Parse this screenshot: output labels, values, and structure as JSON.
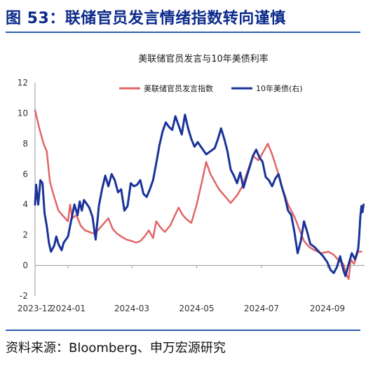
{
  "figure": {
    "title": "图 53：联储官员发言情绪指数转向谨慎",
    "source": "资料来源：Bloomberg、申万宏源研究"
  },
  "chart_data": {
    "type": "line",
    "title": "美联储官员发言与10年美债利率",
    "x_tick_labels": [
      "2023-12",
      "2024-01",
      "2024-03",
      "2024-05",
      "2024-07",
      "2024-09"
    ],
    "y_tick_labels": [
      "-2",
      "0",
      "2",
      "4",
      "6",
      "8",
      "10",
      "12"
    ],
    "ylim": [
      -2,
      12
    ],
    "legend_position": "top-center",
    "grid": false,
    "series": [
      {
        "name": "美联储官员发言指数",
        "color": "#e06666",
        "axis": "left",
        "points": [
          [
            "2023-12-01",
            10.2
          ],
          [
            "2023-12-05",
            9.0
          ],
          [
            "2023-12-09",
            8.0
          ],
          [
            "2023-12-12",
            7.5
          ],
          [
            "2023-12-15",
            5.5
          ],
          [
            "2023-12-19",
            4.5
          ],
          [
            "2023-12-23",
            3.6
          ],
          [
            "2023-12-28",
            3.2
          ],
          [
            "2024-01-01",
            2.9
          ],
          [
            "2024-01-03",
            4.0
          ],
          [
            "2024-01-05",
            3.1
          ],
          [
            "2024-01-09",
            3.3
          ],
          [
            "2024-01-13",
            2.6
          ],
          [
            "2024-01-17",
            2.3
          ],
          [
            "2024-01-21",
            2.2
          ],
          [
            "2024-01-25",
            2.1
          ],
          [
            "2024-01-29",
            2.3
          ],
          [
            "2024-02-03",
            2.7
          ],
          [
            "2024-02-08",
            3.1
          ],
          [
            "2024-02-12",
            2.4
          ],
          [
            "2024-02-16",
            2.1
          ],
          [
            "2024-02-20",
            1.9
          ],
          [
            "2024-02-25",
            1.7
          ],
          [
            "2024-03-01",
            1.6
          ],
          [
            "2024-03-05",
            1.5
          ],
          [
            "2024-03-09",
            1.6
          ],
          [
            "2024-03-13",
            1.9
          ],
          [
            "2024-03-17",
            2.3
          ],
          [
            "2024-03-21",
            1.8
          ],
          [
            "2024-03-24",
            2.9
          ],
          [
            "2024-03-28",
            2.5
          ],
          [
            "2024-04-01",
            2.2
          ],
          [
            "2024-04-06",
            2.6
          ],
          [
            "2024-04-10",
            3.2
          ],
          [
            "2024-04-14",
            3.8
          ],
          [
            "2024-04-18",
            3.3
          ],
          [
            "2024-04-22",
            3.0
          ],
          [
            "2024-04-26",
            2.8
          ],
          [
            "2024-05-01",
            4.0
          ],
          [
            "2024-05-06",
            5.5
          ],
          [
            "2024-05-10",
            6.8
          ],
          [
            "2024-05-14",
            6.0
          ],
          [
            "2024-05-18",
            5.5
          ],
          [
            "2024-05-22",
            5.0
          ],
          [
            "2024-05-27",
            4.6
          ],
          [
            "2024-06-02",
            4.1
          ],
          [
            "2024-06-08",
            4.6
          ],
          [
            "2024-06-13",
            5.2
          ],
          [
            "2024-06-18",
            6.2
          ],
          [
            "2024-06-23",
            7.2
          ],
          [
            "2024-06-28",
            6.9
          ],
          [
            "2024-07-03",
            7.5
          ],
          [
            "2024-07-07",
            8.0
          ],
          [
            "2024-07-11",
            7.3
          ],
          [
            "2024-07-16",
            6.2
          ],
          [
            "2024-07-21",
            5.0
          ],
          [
            "2024-07-26",
            4.0
          ],
          [
            "2024-08-01",
            3.2
          ],
          [
            "2024-08-06",
            2.3
          ],
          [
            "2024-08-10",
            1.6
          ],
          [
            "2024-08-15",
            1.2
          ],
          [
            "2024-08-20",
            1.0
          ],
          [
            "2024-08-26",
            0.8
          ],
          [
            "2024-09-02",
            0.9
          ],
          [
            "2024-09-07",
            0.7
          ],
          [
            "2024-09-12",
            0.3
          ],
          [
            "2024-09-16",
            0.1
          ],
          [
            "2024-09-19",
            -0.6
          ],
          [
            "2024-09-21",
            -0.9
          ],
          [
            "2024-09-23",
            0.4
          ],
          [
            "2024-09-26",
            0.1
          ],
          [
            "2024-09-30",
            0.9
          ],
          [
            "2024-10-03",
            0.9
          ]
        ]
      },
      {
        "name": "10年美债(右)",
        "color": "#1a3399",
        "axis": "left",
        "points": [
          [
            "2023-12-01",
            4.0
          ],
          [
            "2023-12-02",
            5.3
          ],
          [
            "2023-12-04",
            4.0
          ],
          [
            "2023-12-06",
            5.6
          ],
          [
            "2023-12-08",
            5.4
          ],
          [
            "2023-12-10",
            3.4
          ],
          [
            "2023-12-12",
            2.6
          ],
          [
            "2023-12-14",
            1.5
          ],
          [
            "2023-12-16",
            0.9
          ],
          [
            "2023-12-19",
            1.3
          ],
          [
            "2023-12-21",
            1.9
          ],
          [
            "2023-12-23",
            1.4
          ],
          [
            "2023-12-26",
            1.0
          ],
          [
            "2023-12-28",
            1.5
          ],
          [
            "2024-01-01",
            1.9
          ],
          [
            "2024-01-03",
            2.6
          ],
          [
            "2024-01-05",
            3.3
          ],
          [
            "2024-01-07",
            4.0
          ],
          [
            "2024-01-10",
            3.3
          ],
          [
            "2024-01-12",
            4.2
          ],
          [
            "2024-01-14",
            3.6
          ],
          [
            "2024-01-16",
            4.3
          ],
          [
            "2024-01-18",
            4.1
          ],
          [
            "2024-01-21",
            3.8
          ],
          [
            "2024-01-24",
            3.2
          ],
          [
            "2024-01-27",
            1.7
          ],
          [
            "2024-01-30",
            3.9
          ],
          [
            "2024-02-02",
            5.0
          ],
          [
            "2024-02-05",
            5.9
          ],
          [
            "2024-02-08",
            5.2
          ],
          [
            "2024-02-11",
            6.0
          ],
          [
            "2024-02-14",
            5.6
          ],
          [
            "2024-02-17",
            4.8
          ],
          [
            "2024-02-20",
            5.0
          ],
          [
            "2024-02-23",
            3.6
          ],
          [
            "2024-02-26",
            3.9
          ],
          [
            "2024-02-29",
            5.4
          ],
          [
            "2024-03-03",
            5.2
          ],
          [
            "2024-03-06",
            5.3
          ],
          [
            "2024-03-09",
            5.6
          ],
          [
            "2024-03-12",
            4.7
          ],
          [
            "2024-03-15",
            4.5
          ],
          [
            "2024-03-18",
            5.0
          ],
          [
            "2024-03-21",
            5.6
          ],
          [
            "2024-03-24",
            6.7
          ],
          [
            "2024-03-27",
            7.9
          ],
          [
            "2024-03-30",
            8.8
          ],
          [
            "2024-04-02",
            9.4
          ],
          [
            "2024-04-05",
            9.1
          ],
          [
            "2024-04-08",
            8.9
          ],
          [
            "2024-04-11",
            9.8
          ],
          [
            "2024-04-14",
            9.2
          ],
          [
            "2024-04-17",
            8.6
          ],
          [
            "2024-04-20",
            9.9
          ],
          [
            "2024-04-23",
            9.0
          ],
          [
            "2024-04-26",
            8.3
          ],
          [
            "2024-04-29",
            7.8
          ],
          [
            "2024-05-02",
            8.1
          ],
          [
            "2024-05-06",
            7.7
          ],
          [
            "2024-05-10",
            7.3
          ],
          [
            "2024-05-14",
            7.5
          ],
          [
            "2024-05-18",
            7.7
          ],
          [
            "2024-05-21",
            8.3
          ],
          [
            "2024-05-24",
            9.0
          ],
          [
            "2024-05-27",
            8.3
          ],
          [
            "2024-05-30",
            7.5
          ],
          [
            "2024-06-02",
            6.3
          ],
          [
            "2024-06-05",
            5.9
          ],
          [
            "2024-06-08",
            5.4
          ],
          [
            "2024-06-11",
            6.1
          ],
          [
            "2024-06-14",
            5.1
          ],
          [
            "2024-06-17",
            5.8
          ],
          [
            "2024-06-20",
            6.5
          ],
          [
            "2024-06-23",
            7.2
          ],
          [
            "2024-06-26",
            7.6
          ],
          [
            "2024-06-29",
            7.1
          ],
          [
            "2024-07-02",
            6.8
          ],
          [
            "2024-07-05",
            5.8
          ],
          [
            "2024-07-08",
            5.6
          ],
          [
            "2024-07-11",
            5.2
          ],
          [
            "2024-07-14",
            5.7
          ],
          [
            "2024-07-17",
            6.0
          ],
          [
            "2024-07-20",
            5.2
          ],
          [
            "2024-07-23",
            4.5
          ],
          [
            "2024-07-26",
            3.6
          ],
          [
            "2024-07-29",
            3.3
          ],
          [
            "2024-08-01",
            2.2
          ],
          [
            "2024-08-04",
            0.8
          ],
          [
            "2024-08-07",
            1.6
          ],
          [
            "2024-08-10",
            2.9
          ],
          [
            "2024-08-13",
            2.2
          ],
          [
            "2024-08-16",
            1.4
          ],
          [
            "2024-08-20",
            1.2
          ],
          [
            "2024-08-24",
            0.9
          ],
          [
            "2024-08-28",
            0.6
          ],
          [
            "2024-09-01",
            0.2
          ],
          [
            "2024-09-04",
            -0.3
          ],
          [
            "2024-09-07",
            -0.5
          ],
          [
            "2024-09-10",
            -0.1
          ],
          [
            "2024-09-13",
            0.6
          ],
          [
            "2024-09-16",
            -0.3
          ],
          [
            "2024-09-18",
            -0.7
          ],
          [
            "2024-09-21",
            0.1
          ],
          [
            "2024-09-24",
            0.8
          ],
          [
            "2024-09-27",
            0.4
          ],
          [
            "2024-09-30",
            1.1
          ],
          [
            "2024-10-01",
            2.0
          ],
          [
            "2024-10-02",
            3.2
          ],
          [
            "2024-10-03",
            3.9
          ],
          [
            "2024-10-04",
            3.5
          ],
          [
            "2024-10-05",
            4.0
          ]
        ]
      }
    ]
  }
}
